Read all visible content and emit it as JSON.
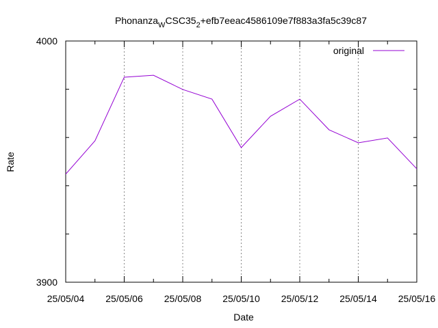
{
  "chart_data": {
    "type": "line",
    "title_parts": [
      {
        "text": "Phonanza"
      },
      {
        "text": "W",
        "subscript": true
      },
      {
        "text": "CSC35"
      },
      {
        "text": "2",
        "subscript": true
      },
      {
        "text": "+efb7eeac4586109e7f883a3fa5c39c87"
      }
    ],
    "x_label": "Date",
    "y_label": "Rate",
    "categories": [
      "25/05/04",
      null,
      "25/05/06",
      null,
      "25/05/08",
      null,
      "25/05/10",
      null,
      "25/05/12",
      null,
      "25/05/14",
      null,
      "25/05/16"
    ],
    "series": [
      {
        "name": "original",
        "color": "#9400d3",
        "values": [
          3944.8,
          3958.6,
          3985.0,
          3985.8,
          3979.9,
          3975.9,
          3955.8,
          3968.8,
          3975.9,
          3963.2,
          3957.8,
          3959.8,
          3947.0
        ]
      }
    ],
    "ylim": [
      3900,
      4000
    ],
    "yticks": [
      3900,
      4000
    ],
    "yminorticks": [
      3920,
      3940,
      3960,
      3980
    ],
    "xgrid": true,
    "legend": "top-right"
  }
}
